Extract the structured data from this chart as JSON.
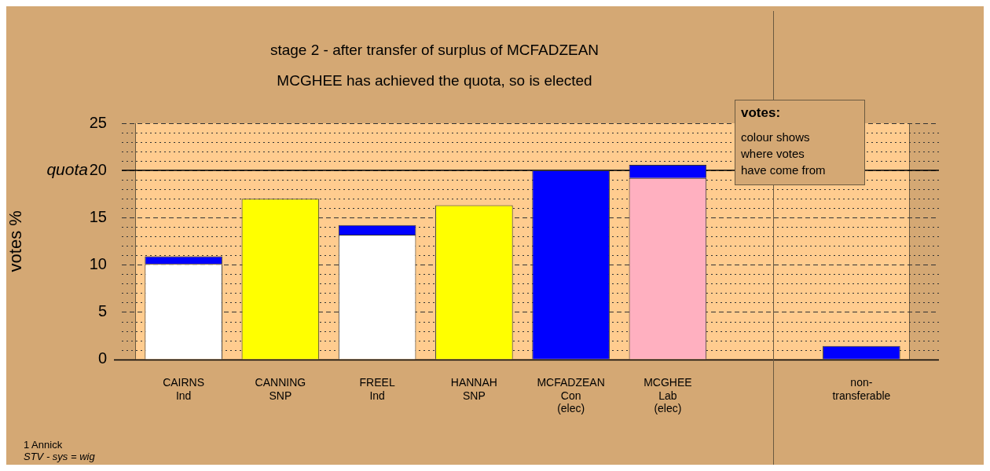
{
  "chart_data": {
    "type": "bar",
    "stacked": true,
    "title": "stage 2 - after transfer of surplus of MCFADZEAN",
    "subtitle": "MCGHEE has achieved the quota, so is elected",
    "ylabel": "votes %",
    "categories": [
      "CAIRNS\nInd",
      "CANNING\nSNP",
      "FREEL\nInd",
      "HANNAH\nSNP",
      "MCFADZEAN\nCon\n(elec)",
      "MCGHEE\nLab\n(elec)",
      null,
      "non-\ntransferable"
    ],
    "series": [
      {
        "values": [
          10.1,
          17.0,
          13.2,
          16.3,
          20.0,
          19.2,
          null,
          null
        ],
        "colors": [
          "#ffffff",
          "#ffff00",
          "#ffffff",
          "#ffff00",
          "#0000ff",
          "#ffb0c0",
          null,
          null
        ]
      },
      {
        "color": "#0000ff",
        "values": [
          0.8,
          null,
          1.0,
          null,
          null,
          1.4,
          null,
          1.4
        ]
      }
    ],
    "ylim": [
      0,
      25
    ],
    "yticks": [
      0,
      {
        "value": 1,
        "label": null
      },
      {
        "value": 2,
        "label": null
      },
      {
        "value": 3,
        "label": null
      },
      {
        "value": 4,
        "label": null
      },
      5,
      {
        "value": 6,
        "label": null
      },
      {
        "value": 7,
        "label": null
      },
      {
        "value": 8,
        "label": null
      },
      {
        "value": 9,
        "label": null
      },
      10,
      {
        "value": 11,
        "label": null
      },
      {
        "value": 12,
        "label": null
      },
      {
        "value": 13,
        "label": null
      },
      {
        "value": 14,
        "label": null
      },
      15,
      {
        "value": 16,
        "label": null
      },
      {
        "value": 17,
        "label": null
      },
      {
        "value": 18,
        "label": null
      },
      {
        "value": 19,
        "label": null
      },
      20,
      {
        "value": 21,
        "label": null
      },
      {
        "value": 22,
        "label": null
      },
      {
        "value": 23,
        "label": null
      },
      {
        "value": 24,
        "label": null
      },
      25
    ],
    "grid": "y",
    "legend": false,
    "ref_lines": [
      {
        "axis": "y",
        "value": 20,
        "label": "quota",
        "color": "#000000"
      }
    ],
    "annotations": [
      "votes:",
      "colour shows\nwhere votes\nhave come from",
      "1 Annick",
      "STV - sys = wig"
    ]
  }
}
